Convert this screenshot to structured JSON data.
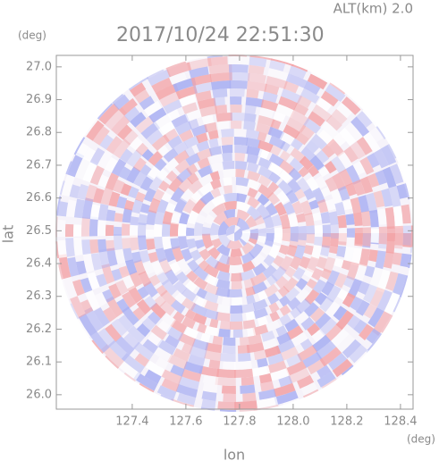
{
  "chart_data": {
    "type": "radar-ppi",
    "title": "2017/10/24 22:51:30",
    "subtitle": "ALT(km) 2.0",
    "x_label": "lon",
    "y_label": "lat",
    "x_unit": "(deg)",
    "y_unit": "(deg)",
    "xlim": [
      127.117,
      128.447
    ],
    "ylim": [
      25.956,
      27.035
    ],
    "xticks": [
      127.4,
      127.6,
      127.8,
      {
        "value": 128.0,
        "label": "128.0"
      },
      128.2,
      128.4
    ],
    "yticks": [
      {
        "value": 26.0,
        "label": "26.0"
      },
      26.1,
      26.2,
      26.3,
      26.4,
      26.5,
      26.6,
      26.7,
      26.8,
      26.9,
      {
        "value": 27.0,
        "label": "27.0"
      }
    ]
  }
}
